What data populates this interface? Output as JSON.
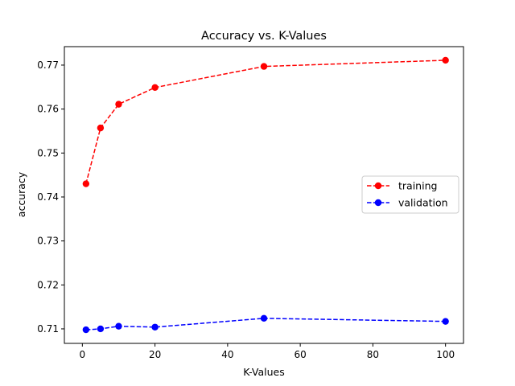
{
  "chart_data": {
    "type": "line",
    "title": "Accuracy vs. K-Values",
    "xlabel": "K-Values",
    "ylabel": "accuracy",
    "xlim": [
      -4.95,
      104.95
    ],
    "ylim": [
      0.7067,
      0.7742
    ],
    "xticks": [
      0,
      20,
      40,
      60,
      80,
      100
    ],
    "yticks": [
      0.71,
      0.72,
      0.73,
      0.74,
      0.75,
      0.76,
      0.77
    ],
    "x": [
      1,
      5,
      10,
      20,
      50,
      100
    ],
    "series": [
      {
        "name": "training",
        "color": "#ff0000",
        "line_style": "dashed",
        "marker": "circle",
        "values": [
          0.743,
          0.7557,
          0.7611,
          0.7649,
          0.7697,
          0.7711
        ]
      },
      {
        "name": "validation",
        "color": "#0000ff",
        "line_style": "dashed",
        "marker": "circle",
        "values": [
          0.7098,
          0.71,
          0.7106,
          0.7104,
          0.7124,
          0.7117
        ]
      }
    ],
    "legend": {
      "placement": "center-right"
    },
    "grid": false
  }
}
